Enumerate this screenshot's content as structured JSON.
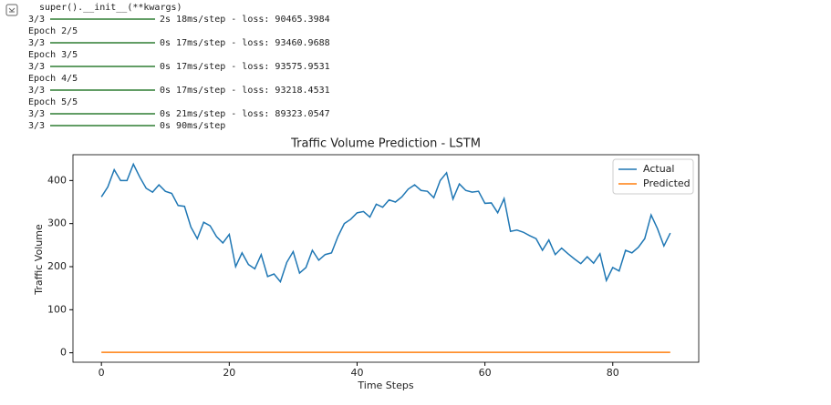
{
  "console": {
    "header": "super().__init__(**kwargs)",
    "lines": [
      {
        "step": "3/3",
        "info": "2s 18ms/step - loss: 90465.3984"
      },
      {
        "text": "Epoch 2/5"
      },
      {
        "step": "3/3",
        "info": "0s 17ms/step - loss: 93460.9688"
      },
      {
        "text": "Epoch 3/5"
      },
      {
        "step": "3/3",
        "info": "0s 17ms/step - loss: 93575.9531"
      },
      {
        "text": "Epoch 4/5"
      },
      {
        "step": "3/3",
        "info": "0s 17ms/step - loss: 93218.4531"
      },
      {
        "text": "Epoch 5/5"
      },
      {
        "step": "3/3",
        "info": "0s 21ms/step - loss: 89323.0547"
      },
      {
        "step": "3/3",
        "info": "0s 90ms/step"
      }
    ]
  },
  "chart_data": {
    "type": "line",
    "title": "Traffic Volume Prediction - LSTM",
    "x_label": "Time Steps",
    "y_label": "Traffic Volume",
    "x": [
      0,
      1,
      2,
      3,
      4,
      5,
      6,
      7,
      8,
      9,
      10,
      11,
      12,
      13,
      14,
      15,
      16,
      17,
      18,
      19,
      20,
      21,
      22,
      23,
      24,
      25,
      26,
      27,
      28,
      29,
      30,
      31,
      32,
      33,
      34,
      35,
      36,
      37,
      38,
      39,
      40,
      41,
      42,
      43,
      44,
      45,
      46,
      47,
      48,
      49,
      50,
      51,
      52,
      53,
      54,
      55,
      56,
      57,
      58,
      59,
      60,
      61,
      62,
      63,
      64,
      65,
      66,
      67,
      68,
      69,
      70,
      71,
      72,
      73,
      74,
      75,
      76,
      77,
      78,
      79,
      80,
      81,
      82,
      83,
      84,
      85,
      86,
      87,
      88,
      89
    ],
    "series": [
      {
        "name": "Actual",
        "color": "#1f77b4",
        "values": [
          362,
          385,
          425,
          400,
          400,
          438,
          408,
          382,
          373,
          390,
          375,
          370,
          342,
          340,
          292,
          265,
          303,
          295,
          270,
          255,
          275,
          200,
          232,
          205,
          195,
          228,
          177,
          183,
          165,
          210,
          235,
          185,
          198,
          238,
          215,
          228,
          232,
          270,
          300,
          310,
          325,
          328,
          315,
          345,
          338,
          355,
          350,
          362,
          380,
          390,
          377,
          375,
          360,
          400,
          418,
          357,
          392,
          377,
          373,
          375,
          347,
          348,
          325,
          358,
          282,
          285,
          280,
          272,
          265,
          238,
          262,
          228,
          243,
          230,
          218,
          207,
          223,
          208,
          230,
          168,
          198,
          190,
          238,
          232,
          245,
          265,
          320,
          288,
          248,
          278
        ]
      },
      {
        "name": "Predicted",
        "color": "#ff7f0e",
        "values": [
          1,
          1,
          1,
          1,
          1,
          1,
          1,
          1,
          1,
          1,
          1,
          1,
          1,
          1,
          1,
          1,
          1,
          1,
          1,
          1,
          1,
          1,
          1,
          1,
          1,
          1,
          1,
          1,
          1,
          1,
          1,
          1,
          1,
          1,
          1,
          1,
          1,
          1,
          1,
          1,
          1,
          1,
          1,
          1,
          1,
          1,
          1,
          1,
          1,
          1,
          1,
          1,
          1,
          1,
          1,
          1,
          1,
          1,
          1,
          1,
          1,
          1,
          1,
          1,
          1,
          1,
          1,
          1,
          1,
          1,
          1,
          1,
          1,
          1,
          1,
          1,
          1,
          1,
          1,
          1,
          1,
          1,
          1,
          1,
          1,
          1,
          1,
          1,
          1,
          1
        ]
      }
    ],
    "xlim": [
      -4.45,
      93.45
    ],
    "ylim": [
      -21.9,
      459.9
    ],
    "xticks": [
      0,
      20,
      40,
      60,
      80
    ],
    "yticks": [
      0,
      100,
      200,
      300,
      400
    ],
    "legend": "upper right",
    "grid": false
  }
}
